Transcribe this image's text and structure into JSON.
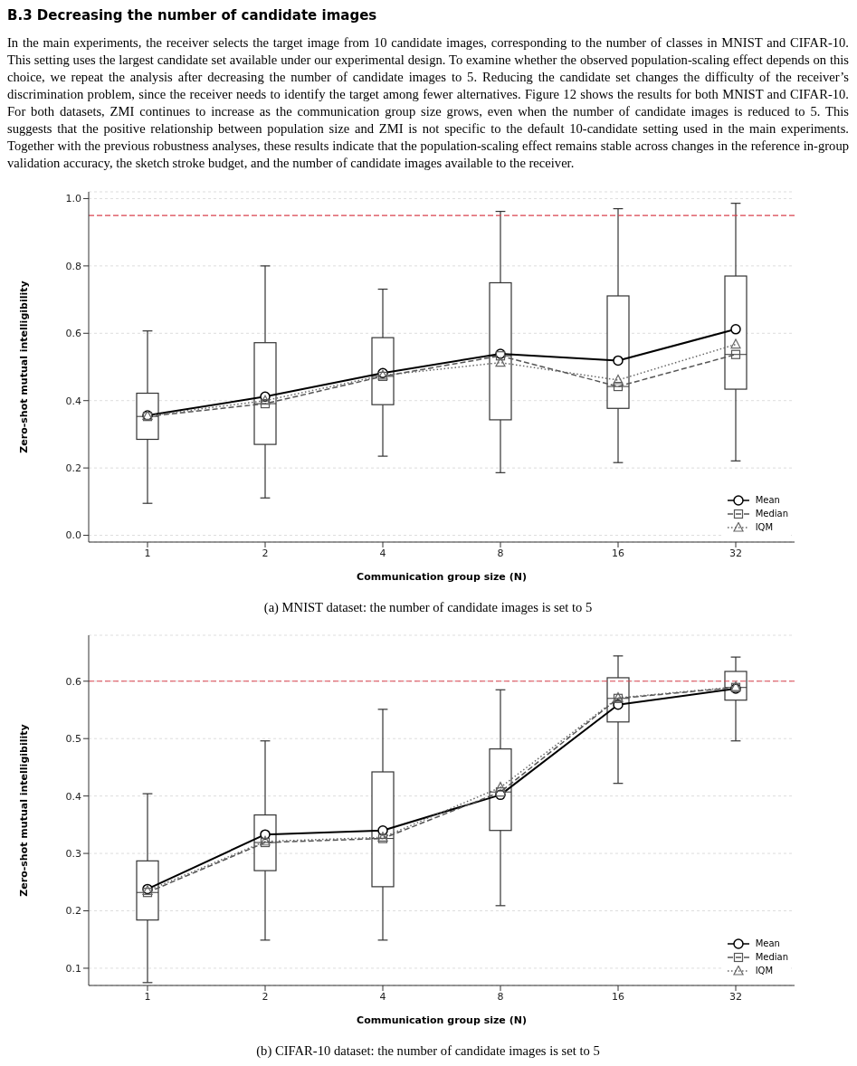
{
  "chart_data": [
    {
      "type": "box",
      "title": "B.3 Decreasing the number of candidate images",
      "annotations": [
        "In the main experiments, the receiver selects the target image from 10 candidate images, corresponding to the number of classes in MNIST and CIFAR-10. This setting uses the largest candidate set available under our experimental design. To examine whether the observed population-scaling effect depends on this choice, we repeat the analysis after decreasing the number of candidate images to 5. Reducing the candidate set changes the difficulty of the receiver’s discrimination problem, since the receiver needs to identify the target among fewer alternatives. Figure 12 shows the results for both MNIST and CIFAR-10. For both datasets, ZMI continues to increase as the communication group size grows, even when the number of candidate images is reduced to 5. This suggests that the positive relationship between population size and ZMI is not specific to the default 10-candidate setting used in the main experiments. Together with the previous robustness analyses, these results indicate that the population-scaling effect remains stable across changes in the reference in-group validation accuracy, the sketch stroke budget, and the number of candidate images available to the receiver.",
        "(a) MNIST dataset: the number of candidate images is set to 5"
      ],
      "xlabel": "Communication group size (N)",
      "ylabel": "Zero-shot mutual intelligibility",
      "categories": [
        "1",
        "2",
        "4",
        "8",
        "16",
        "32"
      ],
      "boxes": [
        {
          "low": 0.095,
          "q1": 0.285,
          "median": 0.353,
          "q3": 0.422,
          "high": 0.607
        },
        {
          "low": 0.111,
          "q1": 0.27,
          "median": 0.391,
          "q3": 0.572,
          "high": 0.8
        },
        {
          "low": 0.235,
          "q1": 0.388,
          "median": 0.472,
          "q3": 0.587,
          "high": 0.731
        },
        {
          "low": 0.186,
          "q1": 0.343,
          "median": 0.533,
          "q3": 0.75,
          "high": 0.962
        },
        {
          "low": 0.216,
          "q1": 0.377,
          "median": 0.442,
          "q3": 0.711,
          "high": 0.97
        },
        {
          "low": 0.221,
          "q1": 0.434,
          "median": 0.537,
          "q3": 0.77,
          "high": 0.986
        }
      ],
      "series": [
        {
          "name": "Mean",
          "type": "line",
          "color": "#000000",
          "marker": "circle",
          "line_style": "solid",
          "values": [
            0.356,
            0.412,
            0.482,
            0.539,
            0.519,
            0.612
          ]
        },
        {
          "name": "Median",
          "type": "line",
          "color": "#555555",
          "marker": "square",
          "line_style": "dashed",
          "values": [
            0.353,
            0.391,
            0.472,
            0.533,
            0.442,
            0.537
          ]
        },
        {
          "name": "IQM",
          "type": "line",
          "color": "#666666",
          "marker": "triangle",
          "line_style": "dotted",
          "values": [
            0.355,
            0.4,
            0.475,
            0.513,
            0.461,
            0.567
          ]
        }
      ],
      "ylim": [
        -0.02,
        1.02
      ],
      "yticks": [
        {
          "value": 0,
          "label": "0.0"
        },
        0.2,
        0.4,
        0.6,
        0.8,
        {
          "value": 1,
          "label": "1.0"
        }
      ],
      "ref_lines": [
        {
          "axis": "y",
          "value": 0.95,
          "color": "#d9434f",
          "line_style": "dashed"
        }
      ],
      "grid": "y",
      "legend": "bottom right"
    },
    {
      "type": "box",
      "annotations": [
        "(b) CIFAR-10 dataset: the number of candidate images is set to 5"
      ],
      "xlabel": "Communication group size (N)",
      "ylabel": "Zero-shot mutual intelligibility",
      "categories": [
        "1",
        "2",
        "4",
        "8",
        "16",
        "32"
      ],
      "boxes": [
        {
          "low": 0.075,
          "q1": 0.184,
          "median": 0.232,
          "q3": 0.287,
          "high": 0.404
        },
        {
          "low": 0.149,
          "q1": 0.27,
          "median": 0.319,
          "q3": 0.367,
          "high": 0.496
        },
        {
          "low": 0.149,
          "q1": 0.242,
          "median": 0.326,
          "q3": 0.442,
          "high": 0.551
        },
        {
          "low": 0.209,
          "q1": 0.34,
          "median": 0.407,
          "q3": 0.482,
          "high": 0.585
        },
        {
          "low": 0.422,
          "q1": 0.529,
          "median": 0.57,
          "q3": 0.606,
          "high": 0.644
        },
        {
          "low": 0.496,
          "q1": 0.567,
          "median": 0.589,
          "q3": 0.617,
          "high": 0.642
        }
      ],
      "series": [
        {
          "name": "Mean",
          "type": "line",
          "color": "#000000",
          "marker": "circle",
          "line_style": "solid",
          "values": [
            0.238,
            0.333,
            0.34,
            0.402,
            0.559,
            0.587
          ]
        },
        {
          "name": "Median",
          "type": "line",
          "color": "#555555",
          "marker": "square",
          "line_style": "dashed",
          "values": [
            0.232,
            0.319,
            0.326,
            0.407,
            0.57,
            0.589
          ]
        },
        {
          "name": "IQM",
          "type": "line",
          "color": "#666666",
          "marker": "triangle",
          "line_style": "dotted",
          "values": [
            0.235,
            0.321,
            0.328,
            0.415,
            0.571,
            0.59
          ]
        }
      ],
      "ylim": [
        0.07,
        0.68
      ],
      "yticks": [
        0.1,
        0.2,
        0.3,
        0.4,
        0.5,
        0.6
      ],
      "ref_lines": [
        {
          "axis": "y",
          "value": 0.6,
          "color": "#d9434f",
          "line_style": "dashed"
        }
      ],
      "grid": "y",
      "legend": "bottom right"
    }
  ]
}
